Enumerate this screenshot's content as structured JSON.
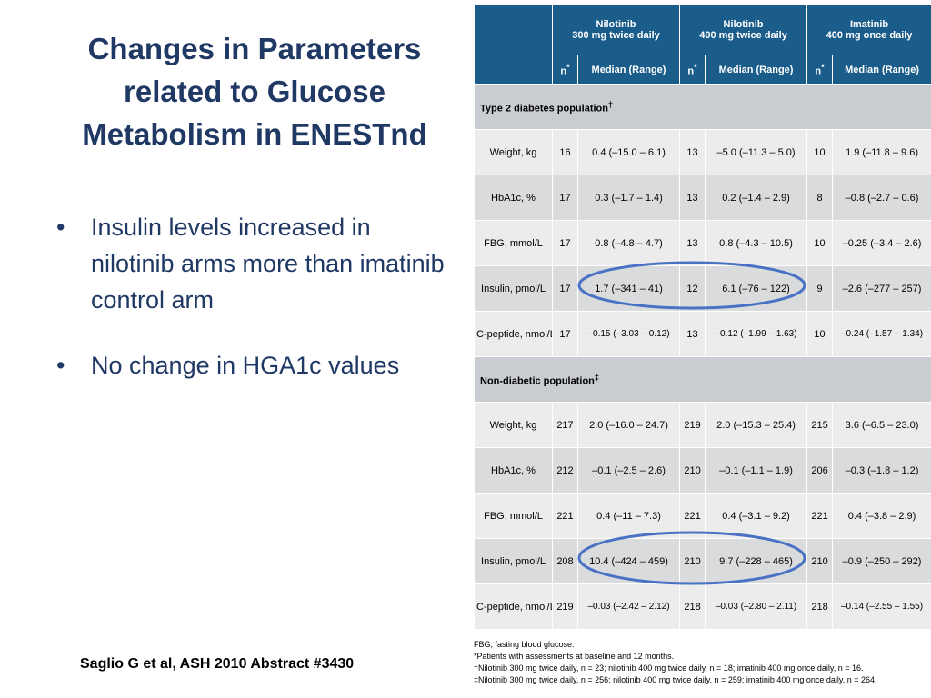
{
  "slide": {
    "title": "Changes in Parameters related to Glucose Metabolism in ENESTnd",
    "bullets": [
      "Insulin levels increased in nilotinib arms more than imatinib control arm",
      "No change in HGA1c values"
    ],
    "bullet_glyph": "•",
    "citation": "Saglio G et al, ASH 2010 Abstract #3430"
  },
  "table": {
    "arms": [
      {
        "name": "Nilotinib",
        "dose": "300 mg twice daily"
      },
      {
        "name": "Nilotinib",
        "dose": "400 mg twice daily"
      },
      {
        "name": "Imatinib",
        "dose": "400 mg once daily"
      }
    ],
    "subheaders": {
      "n": "n",
      "n_mark": "*",
      "median": "Median (Range)"
    },
    "sections": [
      {
        "title": "Type 2 diabetes population",
        "mark": "†",
        "rows": [
          {
            "param": "Weight, kg",
            "cells": [
              "16",
              "0.4 (–15.0 – 6.1)",
              "13",
              "–5.0 (–11.3 – 5.0)",
              "10",
              "1.9 (–11.8 – 9.6)"
            ]
          },
          {
            "param": "HbA1c, %",
            "cells": [
              "17",
              "0.3 (–1.7 – 1.4)",
              "13",
              "0.2 (–1.4 – 2.9)",
              "8",
              "–0.8 (–2.7 – 0.6)"
            ]
          },
          {
            "param": "FBG, mmol/L",
            "cells": [
              "17",
              "0.8 (–4.8 – 4.7)",
              "13",
              "0.8 (–4.3 – 10.5)",
              "10",
              "–0.25 (–3.4 – 2.6)"
            ]
          },
          {
            "param": "Insulin, pmol/L",
            "cells": [
              "17",
              "1.7 (–341 – 41)",
              "12",
              "6.1 (–76 – 122)",
              "9",
              "–2.6 (–277 – 257)"
            ]
          },
          {
            "param": "C-peptide, nmol/L",
            "cells": [
              "17",
              "–0.15 (–3.03 – 0.12)",
              "13",
              "–0.12 (–1.99 – 1.63)",
              "10",
              "–0.24 (–1.57 – 1.34)"
            ]
          }
        ]
      },
      {
        "title": "Non-diabetic population",
        "mark": "‡",
        "rows": [
          {
            "param": "Weight, kg",
            "cells": [
              "217",
              "2.0 (–16.0 – 24.7)",
              "219",
              "2.0 (–15.3 – 25.4)",
              "215",
              "3.6 (–6.5 – 23.0)"
            ]
          },
          {
            "param": "HbA1c, %",
            "cells": [
              "212",
              "–0.1 (–2.5 – 2.6)",
              "210",
              "–0.1 (–1.1 – 1.9)",
              "206",
              "–0.3 (–1.8 – 1.2)"
            ]
          },
          {
            "param": "FBG, mmol/L",
            "cells": [
              "221",
              "0.4 (–11 – 7.3)",
              "221",
              "0.4 (–3.1 – 9.2)",
              "221",
              "0.4 (–3.8 – 2.9)"
            ]
          },
          {
            "param": "Insulin, pmol/L",
            "cells": [
              "208",
              "10.4 (–424 – 459)",
              "210",
              "9.7 (–228 – 465)",
              "210",
              "–0.9 (–250 – 292)"
            ]
          },
          {
            "param": "C-peptide, nmol/L",
            "cells": [
              "219",
              "–0.03 (–2.42 – 2.12)",
              "218",
              "–0.03 (–2.80 – 2.11)",
              "218",
              "–0.14 (–2.55 – 1.55)"
            ]
          }
        ]
      }
    ],
    "highlight_color": "#4a72c4",
    "header_color": "#1a5c8a"
  },
  "footnotes": [
    "FBG, fasting blood glucose.",
    "*Patients with assessments at baseline and 12 months.",
    "†Nilotinib 300 mg twice daily, n = 23; nilotinib 400 mg twice daily, n = 18; imatinib 400 mg once daily, n = 16.",
    "‡Nilotinib 300 mg twice daily, n = 256; nilotinib 400 mg twice daily, n = 259; imatinib 400 mg once daily, n = 264."
  ]
}
